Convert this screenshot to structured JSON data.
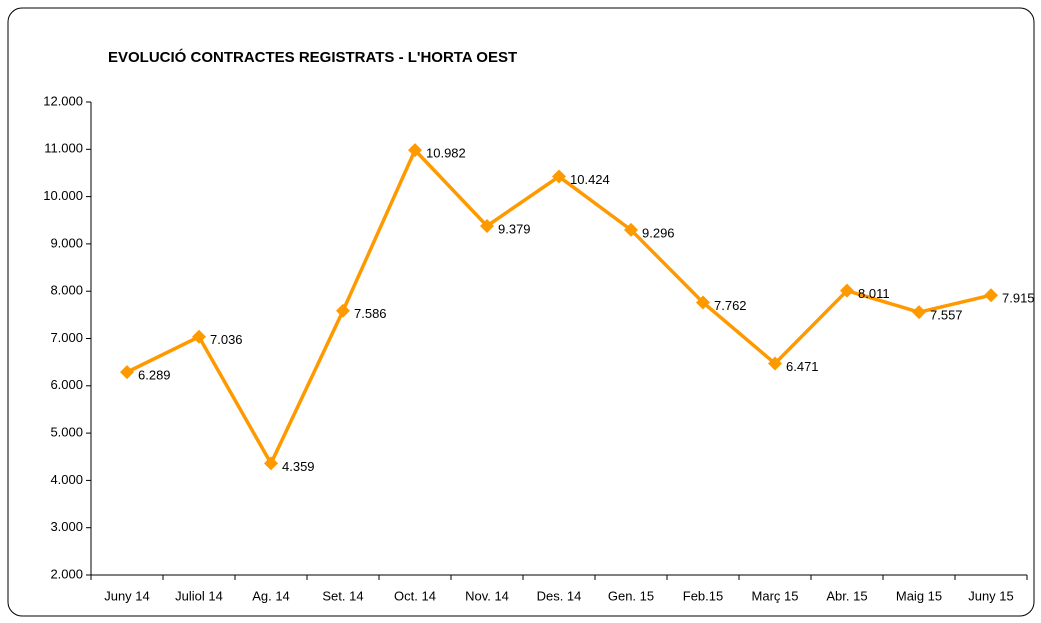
{
  "chart_data": {
    "type": "line",
    "title": "EVOLUCIÓ CONTRACTES REGISTRATS - L'HORTA OEST",
    "categories": [
      "Juny 14",
      "Juliol 14",
      "Ag. 14",
      "Set. 14",
      "Oct. 14",
      "Nov. 14",
      "Des. 14",
      "Gen. 15",
      "Feb.15",
      "Març 15",
      "Abr. 15",
      "Maig 15",
      "Juny 15"
    ],
    "series": [
      {
        "color": "#ff9900",
        "values": [
          6289,
          7036,
          4359,
          7586,
          10982,
          9379,
          10424,
          9296,
          7762,
          6471,
          8011,
          7557,
          7915
        ],
        "value_labels": [
          "6.289",
          "7.036",
          "4.359",
          "7.586",
          "10.982",
          "9.379",
          "10.424",
          "9.296",
          "7.762",
          "6.471",
          "8.011",
          "7.557",
          "7.915"
        ]
      }
    ],
    "ylim": [
      2000,
      12000
    ],
    "yticks": [
      {
        "value": 2000,
        "label": "2.000"
      },
      {
        "value": 3000,
        "label": "3.000"
      },
      {
        "value": 4000,
        "label": "4.000"
      },
      {
        "value": 5000,
        "label": "5.000"
      },
      {
        "value": 6000,
        "label": "6.000"
      },
      {
        "value": 7000,
        "label": "7.000"
      },
      {
        "value": 8000,
        "label": "8.000"
      },
      {
        "value": 9000,
        "label": "9.000"
      },
      {
        "value": 10000,
        "label": "10.000"
      },
      {
        "value": 11000,
        "label": "11.000"
      },
      {
        "value": 12000,
        "label": "12.000"
      }
    ]
  }
}
